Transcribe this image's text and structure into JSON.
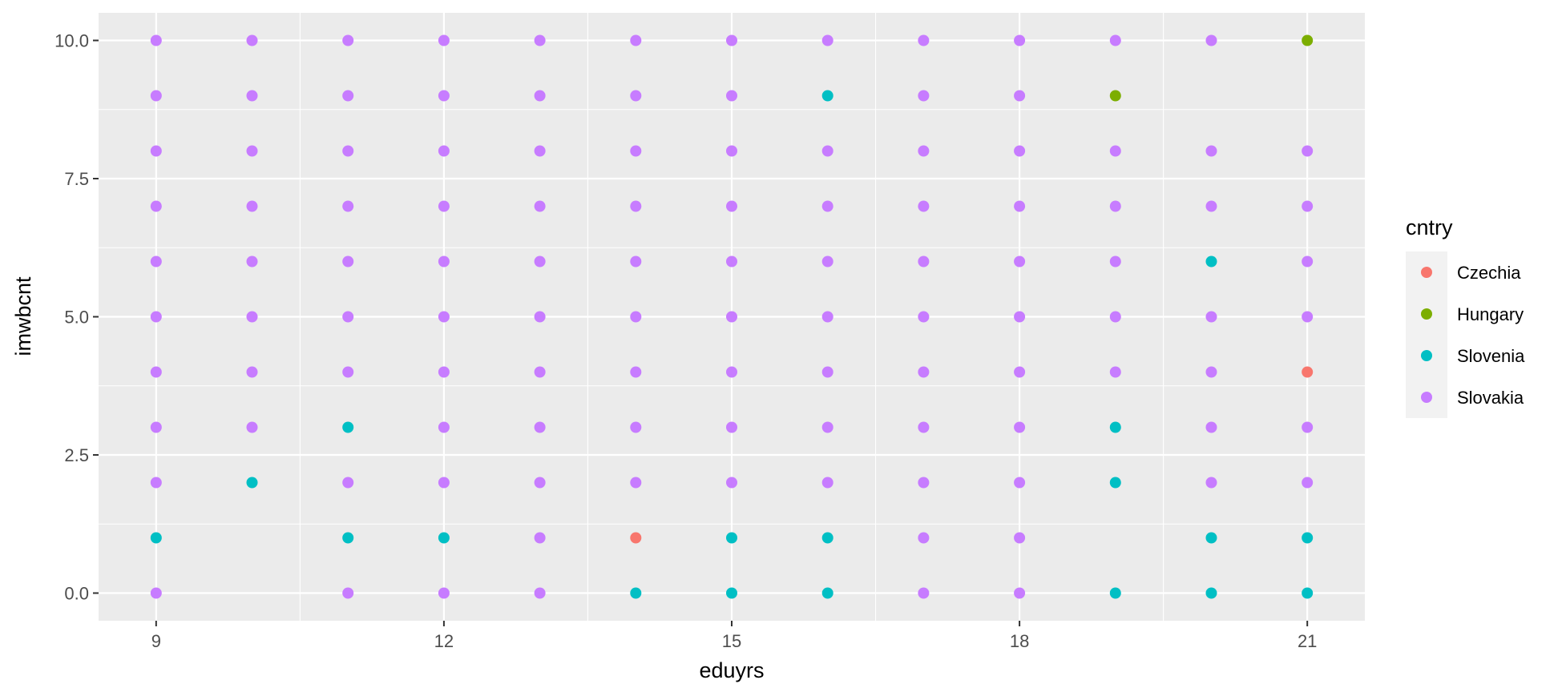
{
  "chart_data": {
    "type": "scatter",
    "title": "",
    "xlabel": "eduyrs",
    "ylabel": "imwbcnt",
    "xlim": [
      8.4,
      21.6
    ],
    "ylim": [
      -0.5,
      10.5
    ],
    "x_ticks": [
      9,
      12,
      15,
      18,
      21
    ],
    "x_tick_labels": [
      "9",
      "12",
      "15",
      "18",
      "21"
    ],
    "y_ticks": [
      0,
      2.5,
      5,
      7.5,
      10
    ],
    "y_tick_labels": [
      "0.0",
      "2.5",
      "5.0",
      "7.5",
      "10.0"
    ],
    "grid": true,
    "legend": {
      "title": "cntry",
      "position": "right"
    },
    "colors": {
      "Czechia": "#F8766D",
      "Hungary": "#7CAE00",
      "Slovenia": "#00BFC4",
      "Slovakia": "#C77CFF"
    },
    "series": [
      {
        "name": "Czechia",
        "points": [
          [
            14,
            1
          ],
          [
            21,
            4
          ]
        ]
      },
      {
        "name": "Hungary",
        "points": [
          [
            19,
            9
          ],
          [
            21,
            10
          ]
        ]
      },
      {
        "name": "Slovenia",
        "points": [
          [
            9,
            1
          ],
          [
            10,
            2
          ],
          [
            11,
            3
          ],
          [
            11,
            1
          ],
          [
            12,
            1
          ],
          [
            14,
            0
          ],
          [
            15,
            1
          ],
          [
            15,
            0
          ],
          [
            16,
            9
          ],
          [
            16,
            1
          ],
          [
            16,
            0
          ],
          [
            19,
            3
          ],
          [
            19,
            2
          ],
          [
            19,
            0
          ],
          [
            20,
            6
          ],
          [
            20,
            1
          ],
          [
            20,
            0
          ],
          [
            21,
            1
          ],
          [
            21,
            0
          ]
        ]
      },
      {
        "name": "Slovakia",
        "points": [
          [
            9,
            10
          ],
          [
            9,
            9
          ],
          [
            9,
            8
          ],
          [
            9,
            7
          ],
          [
            9,
            6
          ],
          [
            9,
            5
          ],
          [
            9,
            4
          ],
          [
            9,
            3
          ],
          [
            9,
            2
          ],
          [
            9,
            0
          ],
          [
            10,
            10
          ],
          [
            10,
            9
          ],
          [
            10,
            8
          ],
          [
            10,
            7
          ],
          [
            10,
            6
          ],
          [
            10,
            5
          ],
          [
            10,
            4
          ],
          [
            10,
            3
          ],
          [
            11,
            10
          ],
          [
            11,
            9
          ],
          [
            11,
            8
          ],
          [
            11,
            7
          ],
          [
            11,
            6
          ],
          [
            11,
            5
          ],
          [
            11,
            4
          ],
          [
            11,
            2
          ],
          [
            11,
            0
          ],
          [
            12,
            10
          ],
          [
            12,
            9
          ],
          [
            12,
            8
          ],
          [
            12,
            7
          ],
          [
            12,
            6
          ],
          [
            12,
            5
          ],
          [
            12,
            4
          ],
          [
            12,
            3
          ],
          [
            12,
            2
          ],
          [
            12,
            0
          ],
          [
            13,
            10
          ],
          [
            13,
            9
          ],
          [
            13,
            8
          ],
          [
            13,
            7
          ],
          [
            13,
            6
          ],
          [
            13,
            5
          ],
          [
            13,
            4
          ],
          [
            13,
            3
          ],
          [
            13,
            2
          ],
          [
            13,
            1
          ],
          [
            13,
            0
          ],
          [
            14,
            10
          ],
          [
            14,
            9
          ],
          [
            14,
            8
          ],
          [
            14,
            7
          ],
          [
            14,
            6
          ],
          [
            14,
            5
          ],
          [
            14,
            4
          ],
          [
            14,
            3
          ],
          [
            14,
            2
          ],
          [
            15,
            10
          ],
          [
            15,
            9
          ],
          [
            15,
            8
          ],
          [
            15,
            7
          ],
          [
            15,
            6
          ],
          [
            15,
            5
          ],
          [
            15,
            4
          ],
          [
            15,
            3
          ],
          [
            15,
            2
          ],
          [
            16,
            10
          ],
          [
            16,
            8
          ],
          [
            16,
            7
          ],
          [
            16,
            6
          ],
          [
            16,
            5
          ],
          [
            16,
            4
          ],
          [
            16,
            3
          ],
          [
            16,
            2
          ],
          [
            17,
            10
          ],
          [
            17,
            9
          ],
          [
            17,
            8
          ],
          [
            17,
            7
          ],
          [
            17,
            6
          ],
          [
            17,
            5
          ],
          [
            17,
            4
          ],
          [
            17,
            3
          ],
          [
            17,
            2
          ],
          [
            17,
            1
          ],
          [
            17,
            0
          ],
          [
            18,
            10
          ],
          [
            18,
            9
          ],
          [
            18,
            8
          ],
          [
            18,
            7
          ],
          [
            18,
            6
          ],
          [
            18,
            5
          ],
          [
            18,
            4
          ],
          [
            18,
            3
          ],
          [
            18,
            2
          ],
          [
            18,
            1
          ],
          [
            18,
            0
          ],
          [
            19,
            10
          ],
          [
            19,
            8
          ],
          [
            19,
            7
          ],
          [
            19,
            6
          ],
          [
            19,
            5
          ],
          [
            19,
            4
          ],
          [
            20,
            10
          ],
          [
            20,
            8
          ],
          [
            20,
            7
          ],
          [
            20,
            5
          ],
          [
            20,
            4
          ],
          [
            20,
            3
          ],
          [
            20,
            2
          ],
          [
            21,
            8
          ],
          [
            21,
            7
          ],
          [
            21,
            6
          ],
          [
            21,
            5
          ],
          [
            21,
            3
          ],
          [
            21,
            2
          ]
        ]
      }
    ]
  }
}
